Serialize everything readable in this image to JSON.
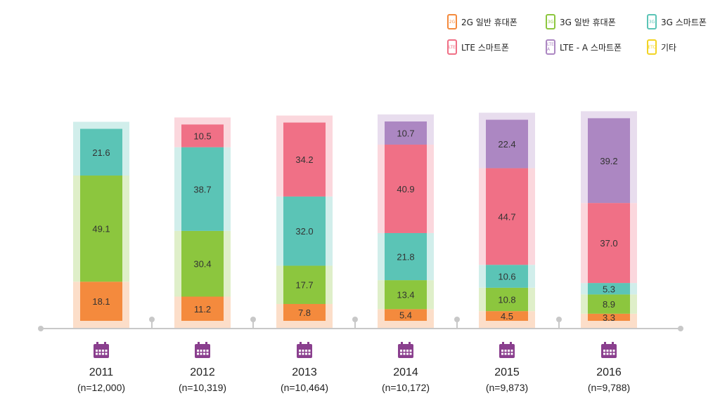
{
  "chart_data": {
    "type": "bar",
    "stacked": true,
    "categories": [
      "2011",
      "2012",
      "2013",
      "2014",
      "2015",
      "2016"
    ],
    "sample_sizes": [
      "(n=12,000)",
      "(n=10,319)",
      "(n=10,464)",
      "(n=10,172)",
      "(n=9,873)",
      "(n=9,788)"
    ],
    "series": [
      {
        "name": "2G 일반 휴대폰",
        "icon": "2G",
        "color": "#f48a3d",
        "values": [
          18.1,
          11.2,
          7.8,
          5.4,
          4.5,
          3.3
        ]
      },
      {
        "name": "3G 일반 휴대폰",
        "icon": "3G",
        "color": "#8cc63e",
        "values": [
          49.1,
          30.4,
          17.7,
          13.4,
          10.8,
          8.9
        ]
      },
      {
        "name": "3G 스마트폰",
        "icon": "3G",
        "color": "#5bc4b6",
        "values": [
          21.6,
          38.7,
          32.0,
          21.8,
          10.6,
          5.3
        ]
      },
      {
        "name": "LTE 스마트폰",
        "icon": "LTE",
        "color": "#f07086",
        "values": [
          null,
          10.5,
          34.2,
          40.9,
          44.7,
          37.0
        ]
      },
      {
        "name": "LTE - A 스마트폰",
        "icon": "LTE A",
        "color": "#ac87c2",
        "values": [
          null,
          null,
          null,
          10.7,
          22.4,
          39.2
        ]
      },
      {
        "name": "기타",
        "icon": "ETC",
        "color": "#f2d424",
        "values": [
          null,
          null,
          null,
          null,
          null,
          null
        ]
      }
    ],
    "legend_position": "top-right",
    "ylim": [
      0,
      100
    ],
    "grid": false
  },
  "icons": {
    "year_marker": "calendar-icon"
  },
  "colors": {
    "axis": "#c8c8c8",
    "calendar": "#8a3f8e",
    "label_text": "#333333"
  }
}
